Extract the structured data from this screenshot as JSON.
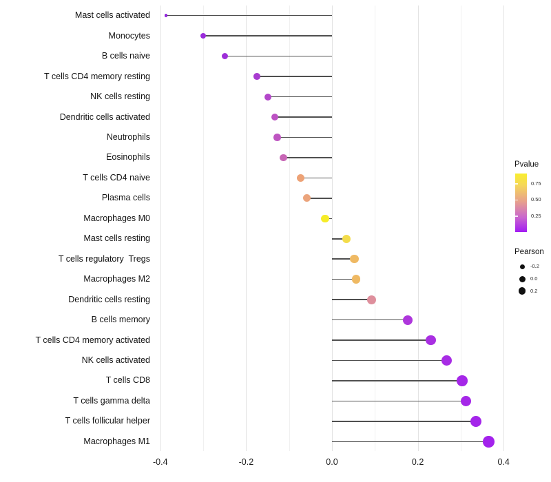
{
  "chart_data": {
    "type": "lollipop",
    "orientation": "horizontal",
    "title": "",
    "xlabel": "",
    "ylabel": "",
    "xlim": [
      -0.425,
      0.405
    ],
    "baseline": 0.0,
    "grid": "vertical-only",
    "x_tick_values": [
      -0.4,
      -0.2,
      0.0,
      0.2,
      0.4
    ],
    "x_tick_labels": [
      "-0.4",
      "-0.2",
      "0.0",
      "0.2",
      "0.4"
    ],
    "x_minor_grid_values": [
      -0.3,
      -0.1,
      0.1,
      0.3
    ],
    "stem_color": "#4f4f4f",
    "points": [
      {
        "label": "Mast cells activated",
        "pearson": -0.387,
        "dot_color": "#9326de",
        "dot_diameter": 4.5
      },
      {
        "label": "Monocytes",
        "pearson": -0.3,
        "dot_color": "#9a2bdb",
        "dot_diameter": 8
      },
      {
        "label": "B cells naive",
        "pearson": -0.25,
        "dot_color": "#9d2ed8",
        "dot_diameter": 9
      },
      {
        "label": "T cells CD4 memory resting",
        "pearson": -0.175,
        "dot_color": "#a83cd0",
        "dot_diameter": 9.5
      },
      {
        "label": "NK cells resting",
        "pearson": -0.15,
        "dot_color": "#b347ca",
        "dot_diameter": 10
      },
      {
        "label": "Dendritic cells activated",
        "pearson": -0.133,
        "dot_color": "#bc52c3",
        "dot_diameter": 10
      },
      {
        "label": "Neutrophils",
        "pearson": -0.128,
        "dot_color": "#be55c1",
        "dot_diameter": 10.5
      },
      {
        "label": "Eosinophils",
        "pearson": -0.113,
        "dot_color": "#c766b5",
        "dot_diameter": 10.5
      },
      {
        "label": "T cells CD4 naive",
        "pearson": -0.073,
        "dot_color": "#eda276",
        "dot_diameter": 11
      },
      {
        "label": "Plasma cells",
        "pearson": -0.058,
        "dot_color": "#eba47c",
        "dot_diameter": 11
      },
      {
        "label": "Macrophages M0",
        "pearson": -0.016,
        "dot_color": "#f6ec28",
        "dot_diameter": 11.5
      },
      {
        "label": "Mast cells resting",
        "pearson": 0.033,
        "dot_color": "#f3dc4b",
        "dot_diameter": 12
      },
      {
        "label": "T cells regulatory  Tregs",
        "pearson": 0.052,
        "dot_color": "#efb963",
        "dot_diameter": 12.5
      },
      {
        "label": "Macrophages M2",
        "pearson": 0.056,
        "dot_color": "#efb963",
        "dot_diameter": 12.5
      },
      {
        "label": "Dendritic cells resting",
        "pearson": 0.093,
        "dot_color": "#de8f9c",
        "dot_diameter": 13
      },
      {
        "label": "B cells memory",
        "pearson": 0.177,
        "dot_color": "#ae36dc",
        "dot_diameter": 14
      },
      {
        "label": "T cells CD4 memory activated",
        "pearson": 0.23,
        "dot_color": "#a92fe2",
        "dot_diameter": 14.5
      },
      {
        "label": "NK cells activated",
        "pearson": 0.268,
        "dot_color": "#a82ce5",
        "dot_diameter": 15
      },
      {
        "label": "T cells CD8",
        "pearson": 0.303,
        "dot_color": "#a527e8",
        "dot_diameter": 15.5
      },
      {
        "label": "T cells gamma delta",
        "pearson": 0.312,
        "dot_color": "#a527e8",
        "dot_diameter": 15.5
      },
      {
        "label": "T cells follicular helper",
        "pearson": 0.335,
        "dot_color": "#a425ea",
        "dot_diameter": 16
      },
      {
        "label": "Macrophages M1",
        "pearson": 0.365,
        "dot_color": "#a322ec",
        "dot_diameter": 16.5
      }
    ],
    "legend_position": "right",
    "legends": {
      "pvalue": {
        "title": "Pvalue",
        "tick_labels": [
          "0.75",
          "0.50",
          "0.25"
        ],
        "tick_fractions_from_bottom": [
          0.822,
          0.55,
          0.269
        ],
        "gradient_stops_bottom_to_top": [
          "#a21cf2 0%",
          "#c966ce 25%",
          "#e8a28b 53%",
          "#f5d75a 80%",
          "#f9ee2f 100%"
        ]
      },
      "pearson": {
        "title": "Pearson",
        "items": [
          {
            "label": "-0.2",
            "dot_diameter": 7
          },
          {
            "label": "0.0",
            "dot_diameter": 9
          },
          {
            "label": "0.2",
            "dot_diameter": 10.5
          }
        ]
      }
    }
  }
}
